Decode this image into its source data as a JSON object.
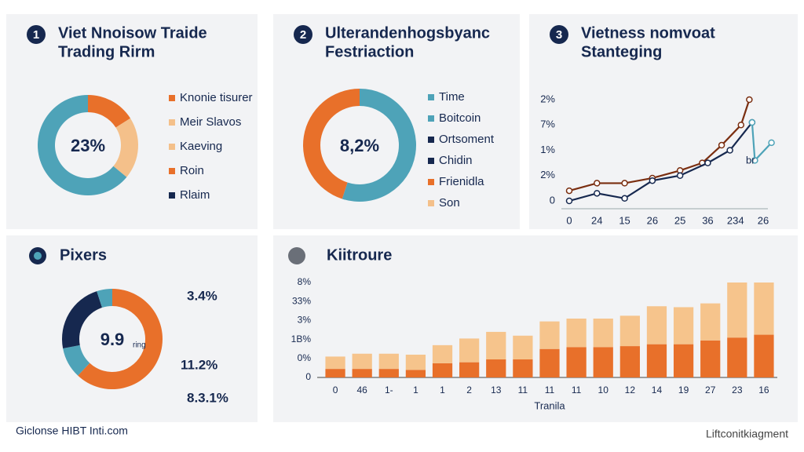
{
  "chart_data": [
    {
      "type": "donut",
      "number": "1",
      "title": [
        "Viet Nnoisow Traide",
        "Trading Rirm"
      ],
      "center": "23%",
      "values": [
        16,
        20,
        64
      ],
      "colors": [
        "#e8702a",
        "#f4c08a",
        "#4ea3b8"
      ],
      "legend": [
        {
          "name": "Knonie tisurer",
          "color": "#e8702a"
        },
        {
          "name": "Meir Slavos",
          "color": "#f4c08a"
        },
        {
          "name": "Kaeving",
          "color": "#f4c08a"
        },
        {
          "name": "Roin",
          "color": "#e8702a"
        },
        {
          "name": "Rlaim",
          "color": "#16284f"
        }
      ]
    },
    {
      "type": "donut",
      "number": "2",
      "title": [
        "Ulterandenhogsbyanc",
        "Festriaction"
      ],
      "center": "8,2%",
      "values": [
        55,
        45
      ],
      "colors": [
        "#4ea3b8",
        "#e8702a"
      ],
      "legend": [
        {
          "name": "Time",
          "color": "#4ea3b8"
        },
        {
          "name": "Boitcoin",
          "color": "#4ea3b8"
        },
        {
          "name": "Ortsoment",
          "color": "#16284f"
        },
        {
          "name": "Chidin",
          "color": "#16284f"
        },
        {
          "name": "Frienidla",
          "color": "#e8702a"
        },
        {
          "name": "Son",
          "color": "#f4c08a"
        }
      ]
    },
    {
      "type": "line",
      "number": "3",
      "title": [
        "Vietness nomvoat",
        "Stanteging"
      ],
      "annotation": "br",
      "xlim": [
        0,
        7
      ],
      "xticks": [
        0,
        {
          "value": 1,
          "label": "24"
        },
        {
          "value": 2,
          "label": "15"
        },
        {
          "value": 3,
          "label": "26"
        },
        {
          "value": 4,
          "label": "25"
        },
        {
          "value": 5,
          "label": "36"
        },
        {
          "value": 6,
          "label": "234"
        },
        {
          "value": 7,
          "label": "26"
        }
      ],
      "ylim": [
        0,
        4
      ],
      "yticks": [
        0,
        {
          "value": 1,
          "label": "2%"
        },
        {
          "value": 2,
          "label": "1%"
        },
        {
          "value": 3,
          "label": "7%"
        },
        {
          "value": 4,
          "label": "2%"
        }
      ],
      "series": [
        {
          "color": "#7a2e10",
          "x": [
            0,
            1,
            2,
            3,
            4,
            4.8,
            5.5,
            6.2,
            6.5
          ],
          "values": [
            0.4,
            0.7,
            0.7,
            0.9,
            1.2,
            1.5,
            2.2,
            3.0,
            4.0
          ]
        },
        {
          "color": "#16284f",
          "x": [
            0,
            1,
            2,
            3,
            4,
            5,
            5.8,
            6.6
          ],
          "values": [
            0,
            0.3,
            0.1,
            0.8,
            1.0,
            1.5,
            2.0,
            3.1
          ]
        },
        {
          "color": "#4ea3b8",
          "x": [
            6.6,
            6.7,
            7.3
          ],
          "values": [
            3.1,
            1.6,
            2.3
          ]
        }
      ]
    },
    {
      "type": "donut",
      "title": "Pixers",
      "center": "9.9",
      "center_note": "ring",
      "values": [
        62,
        10,
        23,
        5
      ],
      "colors": [
        "#e8702a",
        "#4ea3b8",
        "#16284f",
        "#4ea3b8"
      ],
      "annotations": [
        "3.4%",
        "11.2%",
        "8.3.1%"
      ]
    },
    {
      "type": "bar",
      "stacked": true,
      "title": "Kiitroure",
      "xlabel": "Tranila",
      "categories": [
        "0",
        "46",
        "1-",
        "1",
        "1",
        "2",
        "13",
        "11",
        "11",
        "11",
        "10",
        "12",
        "14",
        "19",
        "27",
        "23",
        "16"
      ],
      "ylim": [
        0,
        5
      ],
      "yticks": [
        0,
        {
          "value": 1,
          "label": "0%"
        },
        {
          "value": 2,
          "label": "1B%"
        },
        {
          "value": 3,
          "label": "3%"
        },
        {
          "value": 4,
          "label": "33%"
        },
        {
          "value": 5,
          "label": "8%"
        }
      ],
      "series": [
        {
          "color": "#e8702a",
          "values": [
            0.45,
            0.45,
            0.45,
            0.4,
            0.75,
            0.8,
            0.95,
            0.95,
            1.5,
            1.6,
            1.6,
            1.65,
            1.75,
            1.75,
            1.95,
            2.1,
            2.25
          ]
        },
        {
          "color": "#f6c48c",
          "values": [
            0.65,
            0.8,
            0.8,
            0.8,
            0.95,
            1.25,
            1.45,
            1.25,
            1.45,
            1.5,
            1.5,
            1.6,
            2.0,
            1.95,
            1.95,
            2.9,
            2.75
          ]
        }
      ]
    }
  ],
  "footer": {
    "left": "Giclonse HIBT Inti.com",
    "right": "Liftconitkiagment"
  }
}
